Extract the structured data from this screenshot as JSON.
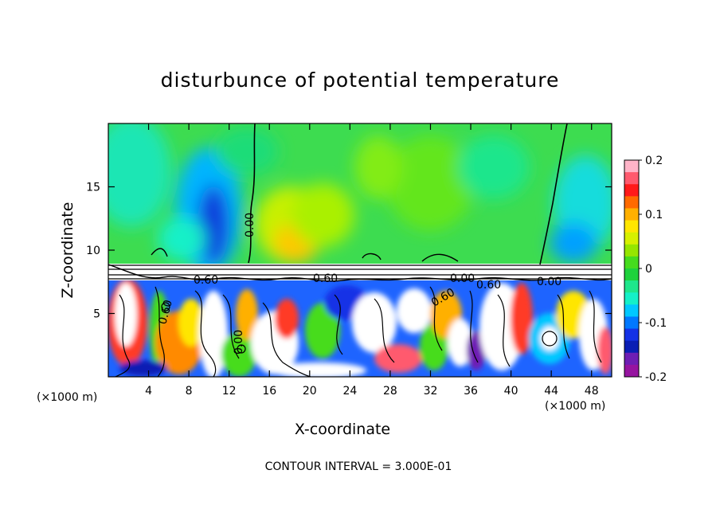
{
  "chart_data": {
    "type": "heatmap",
    "title": "disturbunce of potential temperature",
    "xlabel": "X-coordinate",
    "ylabel": "Z-coordinate",
    "x_unit_label": "(×1000 m)",
    "y_unit_label": "(×1000 m)",
    "xlim": [
      0,
      50
    ],
    "ylim": [
      0,
      20
    ],
    "xticks": [
      4,
      8,
      12,
      16,
      20,
      24,
      28,
      32,
      36,
      40,
      44,
      48
    ],
    "yticks": [
      5,
      10,
      15
    ],
    "colorbar": {
      "min": -0.2,
      "max": 0.2,
      "ticks": [
        "0.2",
        "0.1",
        "0",
        "-0.1",
        "-0.2"
      ],
      "colors": [
        "#ffb4c8",
        "#ff5a6e",
        "#ff1a1a",
        "#ff6a00",
        "#ffb000",
        "#ffe600",
        "#d7f000",
        "#96e600",
        "#46dc1e",
        "#1ed23c",
        "#1ee68c",
        "#14f0c8",
        "#00c8ff",
        "#0078ff",
        "#1432e6",
        "#0a1eb4",
        "#6e1eb4",
        "#9614a0"
      ]
    },
    "contour_labels": [
      "0.00",
      "0.60",
      "0.60",
      "0.00",
      "0.00",
      "0.60",
      "0.60",
      "0.00",
      "0.60"
    ],
    "footer": "CONTOUR INTERVAL = 3.000E-01"
  }
}
